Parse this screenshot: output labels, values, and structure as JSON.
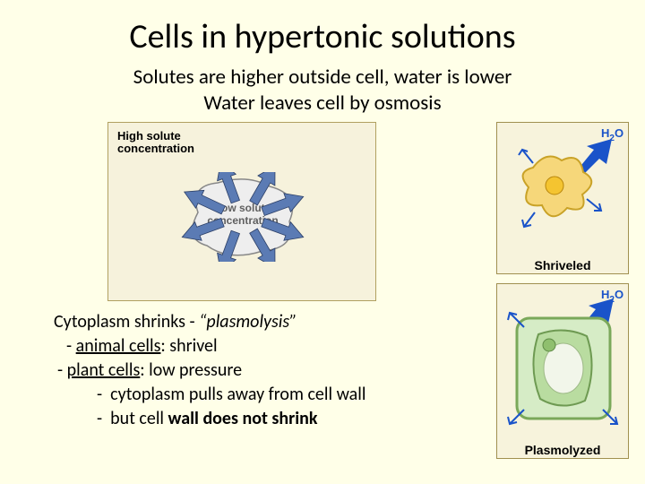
{
  "title": "Cells in hypertonic solutions",
  "subtitle_line1": "Solutes are higher outside cell, water is lower",
  "subtitle_line2": "Water leaves cell by osmosis",
  "diagram": {
    "outer_label_line1": "High solute",
    "outer_label_line2": "concentration",
    "inner_label_line1": "Low solute",
    "inner_label_line2": "concentration",
    "bg_color": "#f6f2dc",
    "border_color": "#b0a060",
    "blob_fill": "#eeeeee",
    "blob_stroke": "#888888",
    "arrow_fill": "#5b7bb4",
    "arrow_stroke": "#2c3f66",
    "arrows": [
      {
        "angle": 20,
        "len": 48
      },
      {
        "angle": 60,
        "len": 48
      },
      {
        "angle": 110,
        "len": 48
      },
      {
        "angle": 160,
        "len": 48
      },
      {
        "angle": 205,
        "len": 48
      },
      {
        "angle": 250,
        "len": 48
      },
      {
        "angle": 300,
        "len": 48
      },
      {
        "angle": 340,
        "len": 48
      }
    ]
  },
  "bottom": {
    "line_shrinks_prefix": "Cytoplasm shrinks - ",
    "line_shrinks_italic": "“plasmolysis”",
    "animal_label": "animal cells",
    "animal_rest": ": shrivel",
    "plant_label": "plant cells",
    "plant_rest": ": low pressure",
    "sub1": "cytoplasm pulls away from cell wall",
    "sub2_prefix": "but cell ",
    "sub2_bold": "wall does not shrink"
  },
  "right": {
    "h2o": "H",
    "h2o_sub": "2",
    "h2o_o": "O",
    "animal_caption": "Shriveled",
    "plant_caption": "Plasmolyzed",
    "panel_bg": "#f7f3dc",
    "panel_border": "#a09050",
    "arrow_color": "#1a53c9",
    "animal_cell_fill": "#f6d77a",
    "animal_cell_stroke": "#c9a227",
    "nucleus_fill": "#f4c430",
    "plant_wall_fill": "#d6ecc6",
    "plant_wall_stroke": "#7aa85a",
    "plant_cyto_fill": "#b9dca0",
    "plant_cyto_stroke": "#6e9a52",
    "plant_vacuole_fill": "#f2f6ea"
  }
}
